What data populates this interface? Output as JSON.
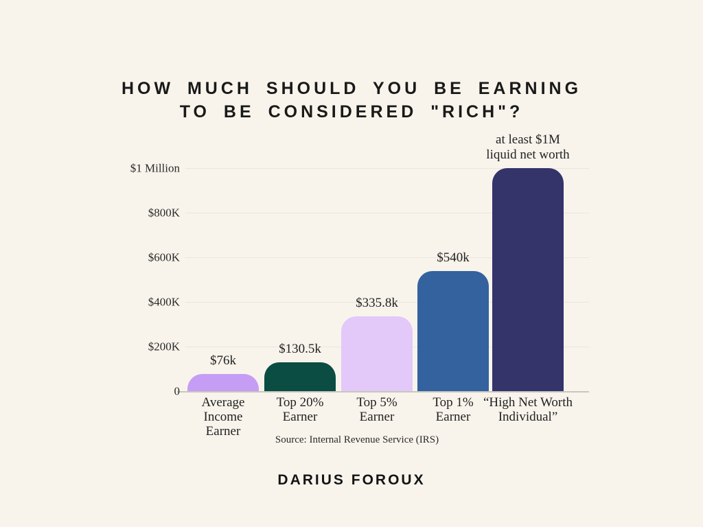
{
  "background": "#f8f4ec",
  "title": {
    "line1": "How much should you be earning",
    "line2": "to be considered \"rich\"?"
  },
  "signature": "DARIUS FOROUX",
  "chart_data": {
    "type": "bar",
    "title": "How much should you be earning to be considered \"rich\"?",
    "categories": [
      "Average Income Earner",
      "Top 20% Earner",
      "Top 5% Earner",
      "Top 1% Earner",
      "“High Net Worth Individual”"
    ],
    "values": [
      76000,
      130500,
      335800,
      540000,
      1000000
    ],
    "value_labels": [
      "$76k",
      "$130.5k",
      "$335.8k",
      "$540k",
      "at least $1M\nliquid net worth"
    ],
    "xtick_labels": [
      "Average\nIncome\nEarner",
      "Top 20%\nEarner",
      "Top 5%\nEarner",
      "Top 1%\nEarner",
      "“High Net Worth\nIndividual”"
    ],
    "bar_colors": [
      "#c69df4",
      "#0b4c43",
      "#e3c9f9",
      "#33629f",
      "#34336a"
    ],
    "xlabel": "",
    "ylabel": "",
    "ylim": [
      0,
      1000000
    ],
    "yticks": [
      {
        "value": 1000000,
        "label": "$1 Million"
      },
      {
        "value": 800000,
        "label": "$800K"
      },
      {
        "value": 600000,
        "label": "$600K"
      },
      {
        "value": 400000,
        "label": "$400K"
      },
      {
        "value": 200000,
        "label": "$200K"
      },
      {
        "value": 0,
        "label": "0"
      }
    ],
    "grid": true,
    "legend": false,
    "source": "Source: Internal Revenue Service (IRS)"
  }
}
